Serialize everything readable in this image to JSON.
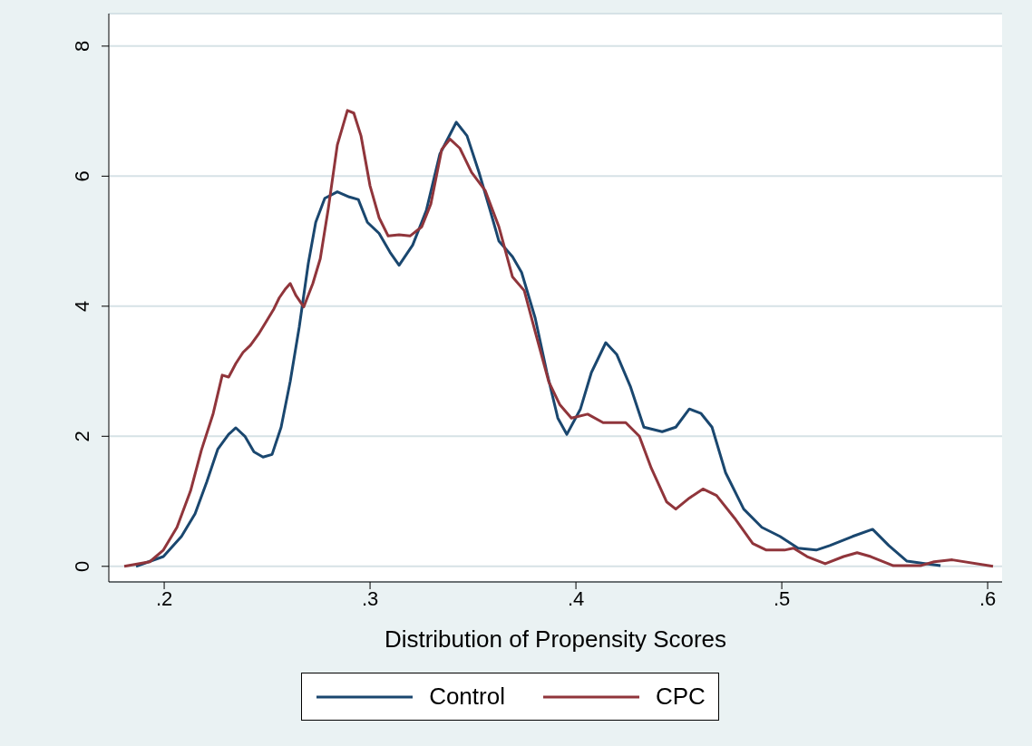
{
  "chart_data": {
    "type": "line",
    "xlabel": "Distribution of Propensity Scores",
    "xlim": [
      0.1731,
      0.607
    ],
    "xticks": [
      {
        "value": 0.2,
        "label": ".2"
      },
      {
        "value": 0.3,
        "label": ".3"
      },
      {
        "value": 0.4,
        "label": ".4"
      },
      {
        "value": 0.5,
        "label": ".5"
      },
      {
        "value": 0.6,
        "label": ".6"
      }
    ],
    "ylim": [
      -0.24,
      8.5
    ],
    "yticks": [
      0,
      2,
      4,
      6,
      8
    ],
    "grid": "y",
    "legend": "bottom",
    "marker": "none",
    "line_style": "solid",
    "series": [
      {
        "name": "Control",
        "color": "#1a476f",
        "x": [
          0.1863,
          0.1996,
          0.2084,
          0.215,
          0.2207,
          0.226,
          0.2313,
          0.2348,
          0.2392,
          0.2436,
          0.248,
          0.2524,
          0.2568,
          0.2612,
          0.2656,
          0.27,
          0.2736,
          0.278,
          0.2841,
          0.2899,
          0.2943,
          0.2987,
          0.3044,
          0.3097,
          0.3141,
          0.3207,
          0.3273,
          0.3339,
          0.3419,
          0.3471,
          0.3529,
          0.3581,
          0.3626,
          0.3692,
          0.3736,
          0.3802,
          0.3859,
          0.3912,
          0.3956,
          0.4022,
          0.4075,
          0.4145,
          0.4198,
          0.4264,
          0.433,
          0.4419,
          0.4485,
          0.4551,
          0.4608,
          0.4661,
          0.4727,
          0.4815,
          0.4903,
          0.4991,
          0.5079,
          0.5167,
          0.5233,
          0.5344,
          0.5441,
          0.552,
          0.5608,
          0.5771
        ],
        "values": [
          0,
          0.15,
          0.46,
          0.81,
          1.3,
          1.8,
          2.03,
          2.13,
          2.0,
          1.76,
          1.68,
          1.72,
          2.14,
          2.84,
          3.68,
          4.66,
          5.29,
          5.66,
          5.76,
          5.68,
          5.64,
          5.29,
          5.12,
          4.83,
          4.63,
          4.94,
          5.47,
          6.34,
          6.83,
          6.62,
          6.06,
          5.5,
          5.0,
          4.76,
          4.52,
          3.82,
          2.98,
          2.28,
          2.03,
          2.42,
          2.98,
          3.44,
          3.26,
          2.77,
          2.14,
          2.07,
          2.14,
          2.42,
          2.35,
          2.14,
          1.44,
          0.88,
          0.6,
          0.46,
          0.28,
          0.25,
          0.32,
          0.46,
          0.57,
          0.32,
          0.08,
          0.01
        ]
      },
      {
        "name": "CPC",
        "color": "#90353b",
        "x": [
          0.1806,
          0.193,
          0.1996,
          0.2062,
          0.2128,
          0.2181,
          0.2238,
          0.2282,
          0.2313,
          0.2348,
          0.2383,
          0.2419,
          0.2458,
          0.2493,
          0.2533,
          0.2559,
          0.259,
          0.2612,
          0.2639,
          0.2678,
          0.2722,
          0.2758,
          0.2797,
          0.2841,
          0.289,
          0.2921,
          0.2956,
          0.3,
          0.3044,
          0.3088,
          0.3141,
          0.3194,
          0.3251,
          0.3295,
          0.3348,
          0.3388,
          0.3436,
          0.3493,
          0.3559,
          0.3626,
          0.3692,
          0.3749,
          0.3802,
          0.3868,
          0.3921,
          0.3978,
          0.4057,
          0.4132,
          0.4242,
          0.4308,
          0.4366,
          0.4441,
          0.4485,
          0.4551,
          0.4617,
          0.4683,
          0.4771,
          0.4859,
          0.4925,
          0.5013,
          0.5057,
          0.5123,
          0.5211,
          0.53,
          0.5366,
          0.5432,
          0.5542,
          0.5674,
          0.574,
          0.5828,
          0.6026
        ],
        "values": [
          0,
          0.07,
          0.25,
          0.6,
          1.16,
          1.79,
          2.35,
          2.94,
          2.91,
          3.12,
          3.29,
          3.4,
          3.57,
          3.75,
          3.96,
          4.13,
          4.27,
          4.35,
          4.17,
          3.99,
          4.35,
          4.73,
          5.5,
          6.48,
          7.01,
          6.97,
          6.62,
          5.85,
          5.36,
          5.08,
          5.1,
          5.08,
          5.22,
          5.57,
          6.41,
          6.57,
          6.43,
          6.06,
          5.78,
          5.22,
          4.45,
          4.24,
          3.61,
          2.84,
          2.49,
          2.28,
          2.34,
          2.21,
          2.21,
          2.0,
          1.51,
          0.99,
          0.88,
          1.05,
          1.19,
          1.09,
          0.74,
          0.35,
          0.25,
          0.25,
          0.28,
          0.15,
          0.04,
          0.15,
          0.21,
          0.15,
          0.01,
          0.01,
          0.07,
          0.1,
          0
        ]
      }
    ]
  }
}
